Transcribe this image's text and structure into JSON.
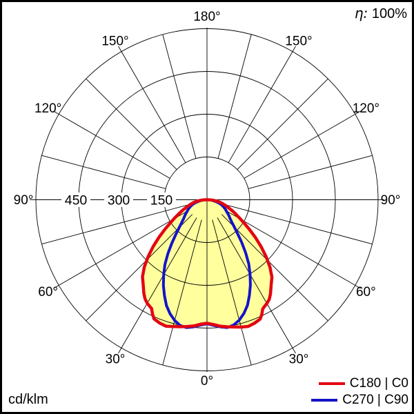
{
  "overlays": {
    "efficiency_symbol": "η:",
    "efficiency_value": "100%",
    "unit": "cd/klm"
  },
  "legend": [
    {
      "label": "C180 | C0",
      "color": "#e30613"
    },
    {
      "label": "C270 | C90",
      "color": "#1414c8"
    }
  ],
  "chart_data": {
    "type": "polar",
    "subtype": "luminous-intensity-distribution",
    "unit": "cd/klm",
    "efficiency": "η: 100%",
    "r_max": 600,
    "ring_values": [
      150,
      300,
      450,
      600
    ],
    "ring_labels": [
      "450",
      "300",
      "150"
    ],
    "spoke_step_deg": 15,
    "tick_step_deg": 30,
    "angle_labels": [
      {
        "deg": 0,
        "text": "0°"
      },
      {
        "deg": 30,
        "text": "30°"
      },
      {
        "deg": 60,
        "text": "60°"
      },
      {
        "deg": 90,
        "text": "90°"
      },
      {
        "deg": 120,
        "text": "120°"
      },
      {
        "deg": 150,
        "text": "150°"
      },
      {
        "deg": 180,
        "text": "180°"
      }
    ],
    "angle_labels_mirrored": true,
    "fill_color": "#ffff9e",
    "grid_color": "#000000",
    "series": [
      {
        "name": "C180 | C0",
        "color": "#e30613",
        "filled": true,
        "points": [
          [
            -90,
            4
          ],
          [
            -88,
            12
          ],
          [
            -85,
            23
          ],
          [
            -82,
            34
          ],
          [
            -79,
            46
          ],
          [
            -76,
            55
          ],
          [
            -73,
            65
          ],
          [
            -70,
            77
          ],
          [
            -67,
            92
          ],
          [
            -64,
            108
          ],
          [
            -61,
            127
          ],
          [
            -58,
            150
          ],
          [
            -55,
            180
          ],
          [
            -52,
            214
          ],
          [
            -49,
            250
          ],
          [
            -46,
            287
          ],
          [
            -43,
            322
          ],
          [
            -40,
            352
          ],
          [
            -37,
            372
          ],
          [
            -34,
            396
          ],
          [
            -32,
            410
          ],
          [
            -30,
            419
          ],
          [
            -28,
            425
          ],
          [
            -27,
            428
          ],
          [
            -25.5,
            444
          ],
          [
            -24,
            457
          ],
          [
            -21,
            463
          ],
          [
            -18,
            466
          ],
          [
            -15,
            460
          ],
          [
            -12,
            455
          ],
          [
            -9,
            450
          ],
          [
            -6,
            445
          ],
          [
            -3,
            437
          ],
          [
            0,
            433
          ],
          [
            3,
            438
          ],
          [
            6,
            446
          ],
          [
            9,
            451
          ],
          [
            12,
            456
          ],
          [
            15,
            462
          ],
          [
            18,
            467
          ],
          [
            21,
            464
          ],
          [
            24,
            458
          ],
          [
            25.5,
            446
          ],
          [
            27,
            430
          ],
          [
            28,
            426
          ],
          [
            30,
            420
          ],
          [
            32,
            412
          ],
          [
            34,
            398
          ],
          [
            37,
            374
          ],
          [
            40,
            354
          ],
          [
            43,
            324
          ],
          [
            46,
            289
          ],
          [
            49,
            252
          ],
          [
            52,
            216
          ],
          [
            55,
            182
          ],
          [
            58,
            152
          ],
          [
            61,
            129
          ],
          [
            64,
            110
          ],
          [
            67,
            94
          ],
          [
            70,
            79
          ],
          [
            73,
            67
          ],
          [
            76,
            57
          ],
          [
            79,
            47
          ],
          [
            82,
            35
          ],
          [
            85,
            24
          ],
          [
            88,
            13
          ],
          [
            90,
            4
          ]
        ]
      },
      {
        "name": "C270 | C90",
        "color": "#1414c8",
        "filled": false,
        "points": [
          [
            -90,
            3
          ],
          [
            -87,
            10
          ],
          [
            -84,
            18
          ],
          [
            -81,
            26
          ],
          [
            -78,
            34
          ],
          [
            -75,
            44
          ],
          [
            -72,
            53
          ],
          [
            -69,
            60
          ],
          [
            -66,
            67
          ],
          [
            -63,
            74
          ],
          [
            -60,
            80
          ],
          [
            -57,
            88
          ],
          [
            -54,
            97
          ],
          [
            -51,
            106
          ],
          [
            -48,
            119
          ],
          [
            -45,
            138
          ],
          [
            -42,
            163
          ],
          [
            -39,
            196
          ],
          [
            -36,
            233
          ],
          [
            -33,
            271
          ],
          [
            -30,
            304
          ],
          [
            -27,
            337
          ],
          [
            -24,
            367
          ],
          [
            -21,
            397
          ],
          [
            -18,
            420
          ],
          [
            -15,
            438
          ],
          [
            -12,
            451
          ],
          [
            -9,
            454
          ],
          [
            -6,
            448
          ],
          [
            -3,
            440
          ],
          [
            0,
            435
          ],
          [
            3,
            441
          ],
          [
            6,
            448
          ],
          [
            9,
            454
          ],
          [
            12,
            449
          ],
          [
            15,
            437
          ],
          [
            18,
            419
          ],
          [
            21,
            396
          ],
          [
            24,
            366
          ],
          [
            27,
            335
          ],
          [
            30,
            302
          ],
          [
            33,
            269
          ],
          [
            36,
            231
          ],
          [
            39,
            194
          ],
          [
            42,
            161
          ],
          [
            45,
            136
          ],
          [
            48,
            117
          ],
          [
            51,
            104
          ],
          [
            54,
            95
          ],
          [
            57,
            86
          ],
          [
            60,
            78
          ],
          [
            63,
            72
          ],
          [
            66,
            65
          ],
          [
            69,
            58
          ],
          [
            72,
            51
          ],
          [
            75,
            42
          ],
          [
            78,
            32
          ],
          [
            81,
            24
          ],
          [
            84,
            16
          ],
          [
            87,
            9
          ],
          [
            90,
            3
          ]
        ]
      }
    ]
  }
}
